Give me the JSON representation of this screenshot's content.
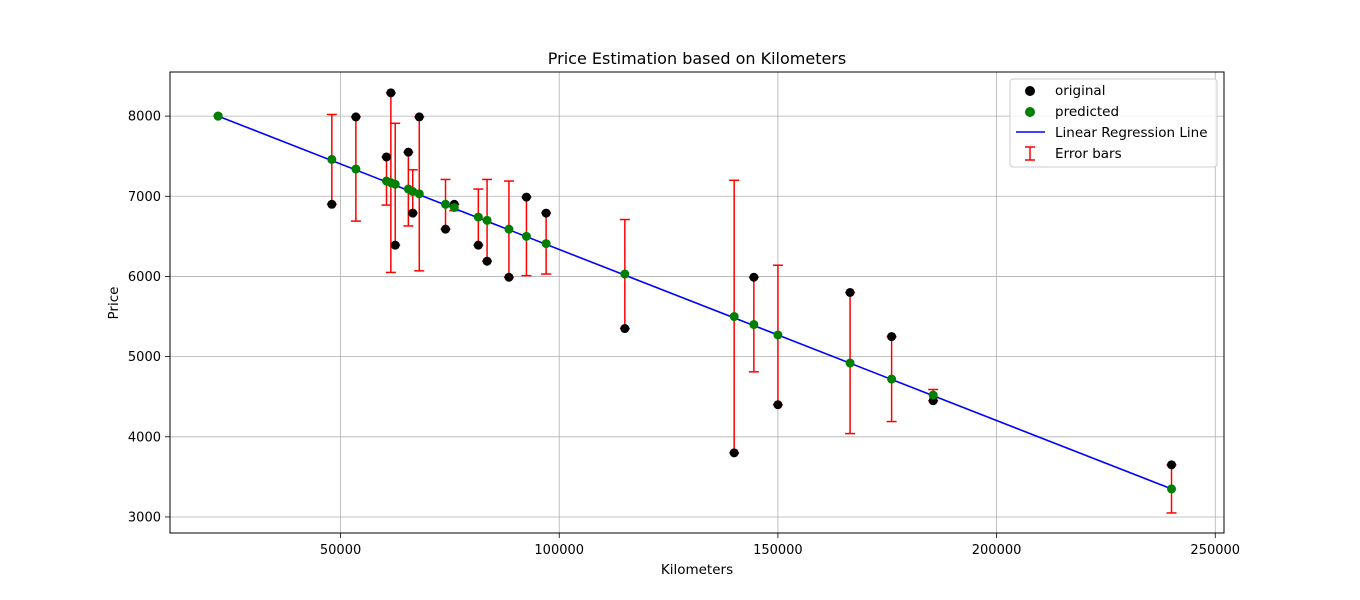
{
  "chart_data": {
    "type": "scatter",
    "title": "Price Estimation based on Kilometers",
    "xlabel": "Kilometers",
    "ylabel": "Price",
    "xlim": [
      11000,
      252000
    ],
    "ylim": [
      2800,
      8550
    ],
    "x_ticks": [
      50000,
      100000,
      150000,
      200000,
      250000
    ],
    "y_ticks": [
      3000,
      4000,
      5000,
      6000,
      7000,
      8000
    ],
    "grid": true,
    "legend_position": "top-right",
    "legend": {
      "original": "original",
      "predicted": "predicted",
      "line": "Linear Regression Line",
      "errors": "Error bars"
    },
    "colors": {
      "original": "#000000",
      "predicted": "#008000",
      "line": "#0000ff",
      "errors": "#ff0000",
      "grid": "#b0b0b0"
    },
    "points": [
      {
        "x": 22000,
        "original": 8000,
        "predicted": 8000
      },
      {
        "x": 48000,
        "original": 6900,
        "predicted": 7460
      },
      {
        "x": 53500,
        "original": 7990,
        "predicted": 7340
      },
      {
        "x": 60500,
        "original": 7490,
        "predicted": 7190
      },
      {
        "x": 61500,
        "original": 8290,
        "predicted": 7170
      },
      {
        "x": 62500,
        "original": 6390,
        "predicted": 7150
      },
      {
        "x": 65500,
        "original": 7550,
        "predicted": 7090
      },
      {
        "x": 66500,
        "original": 6790,
        "predicted": 7060
      },
      {
        "x": 68000,
        "original": 7990,
        "predicted": 7030
      },
      {
        "x": 74000,
        "original": 6590,
        "predicted": 6900
      },
      {
        "x": 76000,
        "original": 6900,
        "predicted": 6860
      },
      {
        "x": 81500,
        "original": 6390,
        "predicted": 6740
      },
      {
        "x": 83500,
        "original": 6190,
        "predicted": 6700
      },
      {
        "x": 88500,
        "original": 5990,
        "predicted": 6590
      },
      {
        "x": 92500,
        "original": 6990,
        "predicted": 6500
      },
      {
        "x": 97000,
        "original": 6790,
        "predicted": 6410
      },
      {
        "x": 115000,
        "original": 5350,
        "predicted": 6030
      },
      {
        "x": 140000,
        "original": 3800,
        "predicted": 5500
      },
      {
        "x": 144500,
        "original": 5990,
        "predicted": 5400
      },
      {
        "x": 150000,
        "original": 4400,
        "predicted": 5270
      },
      {
        "x": 166500,
        "original": 5800,
        "predicted": 4920
      },
      {
        "x": 176000,
        "original": 5250,
        "predicted": 4720
      },
      {
        "x": 185500,
        "original": 4450,
        "predicted": 4520
      },
      {
        "x": 240000,
        "original": 3650,
        "predicted": 3350
      }
    ],
    "regression_line": {
      "x": [
        22000,
        240000
      ],
      "y": [
        8000,
        3350
      ]
    }
  }
}
